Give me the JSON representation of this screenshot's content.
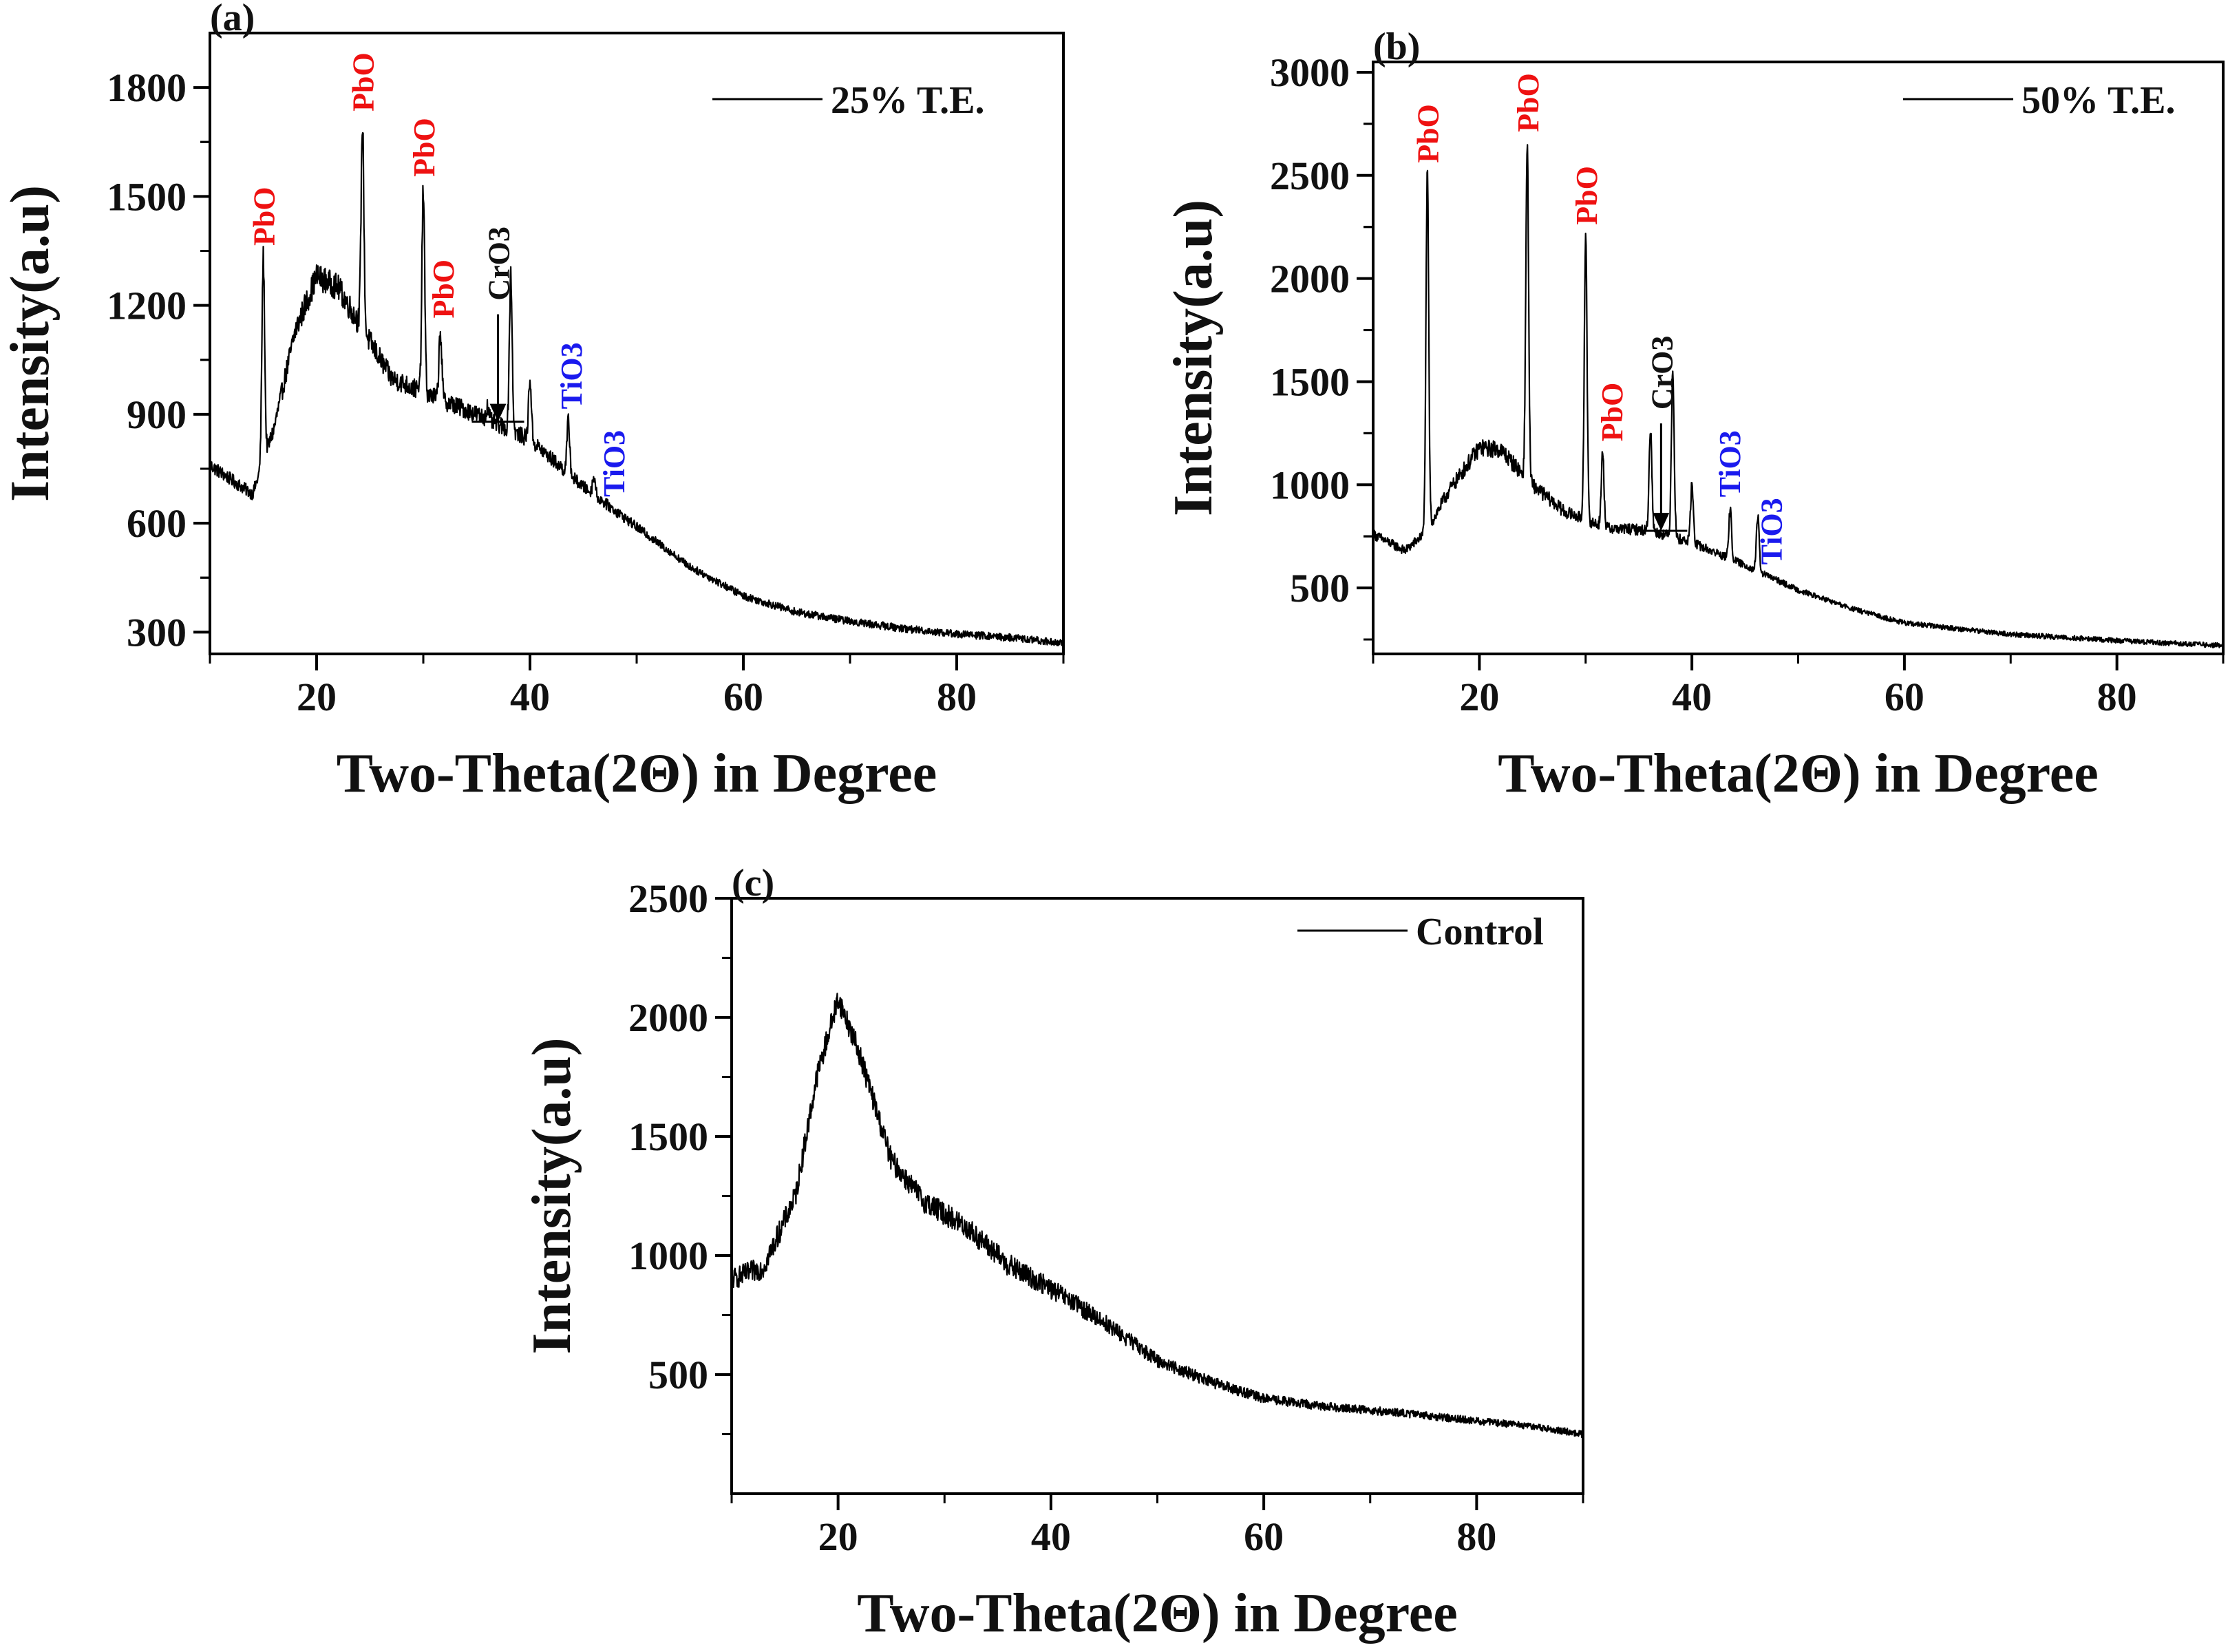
{
  "chart_data": [
    {
      "type": "line",
      "panel": "(a)",
      "legend": "25% T.E.",
      "legend_placement": "top-right",
      "xlabel": "Two-Theta(2Θ) in Degree",
      "ylabel": "Intensity(a.u)",
      "xlim": [
        10,
        90
      ],
      "ylim": [
        240,
        1950
      ],
      "xticks": [
        20,
        40,
        60,
        80
      ],
      "yticks": [
        300,
        600,
        900,
        1200,
        1500,
        1800
      ],
      "series": [
        {
          "name": "25% T.E.",
          "background": [
            [
              10,
              760
            ],
            [
              14,
              680
            ],
            [
              16,
              860
            ],
            [
              18,
              1130
            ],
            [
              20,
              1280
            ],
            [
              22,
              1250
            ],
            [
              24,
              1150
            ],
            [
              27,
              1000
            ],
            [
              30,
              960
            ],
            [
              35,
              900
            ],
            [
              40,
              830
            ],
            [
              45,
              700
            ],
            [
              50,
              590
            ],
            [
              55,
              480
            ],
            [
              60,
              400
            ],
            [
              65,
              355
            ],
            [
              70,
              330
            ],
            [
              75,
              310
            ],
            [
              80,
              295
            ],
            [
              85,
              285
            ],
            [
              90,
              270
            ]
          ],
          "peaks": [
            [
              15.0,
              1330
            ],
            [
              24.3,
              1700
            ],
            [
              30.0,
              1520
            ],
            [
              31.6,
              1130
            ],
            [
              36.0,
              920
            ],
            [
              38.2,
              1290
            ],
            [
              40.0,
              1000
            ],
            [
              43.6,
              880
            ],
            [
              46.0,
              730
            ]
          ],
          "noise": 30
        }
      ],
      "annotations": [
        {
          "text": "PbO",
          "x": 15.0,
          "color": "#ee1111"
        },
        {
          "text": "PbO",
          "x": 24.3,
          "color": "#ee1111"
        },
        {
          "text": "PbO",
          "x": 30.0,
          "color": "#ee1111"
        },
        {
          "text": "PbO",
          "x": 31.8,
          "color": "#ee1111"
        },
        {
          "text": "CrO3",
          "x": 37.0,
          "color": "#111111"
        },
        {
          "text": "TiO3",
          "x": 43.8,
          "color": "#1a1aee"
        },
        {
          "text": "TiO3",
          "x": 47.8,
          "color": "#1a1aee"
        }
      ]
    },
    {
      "type": "line",
      "panel": "(b)",
      "legend": "50% T.E.",
      "legend_placement": "top-right",
      "xlabel": "Two-Theta(2Θ) in Degree",
      "ylabel": "Intensity(a.u)",
      "xlim": [
        10,
        90
      ],
      "ylim": [
        180,
        3050
      ],
      "xticks": [
        20,
        40,
        60,
        80
      ],
      "yticks": [
        500,
        1000,
        1500,
        2000,
        2500,
        3000
      ],
      "series": [
        {
          "name": "50% T.E.",
          "background": [
            [
              10,
              760
            ],
            [
              13,
              680
            ],
            [
              15,
              770
            ],
            [
              17,
              960
            ],
            [
              20,
              1180
            ],
            [
              22,
              1170
            ],
            [
              25,
              1000
            ],
            [
              28,
              870
            ],
            [
              32,
              790
            ],
            [
              36,
              780
            ],
            [
              40,
              720
            ],
            [
              45,
              610
            ],
            [
              50,
              490
            ],
            [
              55,
              400
            ],
            [
              60,
              330
            ],
            [
              70,
              275
            ],
            [
              80,
              245
            ],
            [
              90,
              220
            ]
          ],
          "peaks": [
            [
              15.1,
              2500
            ],
            [
              24.5,
              2650
            ],
            [
              30.0,
              2200
            ],
            [
              31.6,
              1150
            ],
            [
              36.1,
              1280
            ],
            [
              38.2,
              1560
            ],
            [
              40.0,
              1000
            ],
            [
              43.6,
              880
            ],
            [
              46.2,
              840
            ]
          ],
          "noise": 35
        }
      ],
      "annotations": [
        {
          "text": "PbO",
          "x": 15.1,
          "color": "#ee1111"
        },
        {
          "text": "PbO",
          "x": 24.5,
          "color": "#ee1111"
        },
        {
          "text": "PbO",
          "x": 30.0,
          "color": "#ee1111"
        },
        {
          "text": "PbO",
          "x": 32.4,
          "color": "#ee1111"
        },
        {
          "text": "CrO3",
          "x": 37.1,
          "color": "#111111"
        },
        {
          "text": "TiO3",
          "x": 43.5,
          "color": "#1a1aee"
        },
        {
          "text": "TiO3",
          "x": 47.4,
          "color": "#1a1aee"
        }
      ]
    },
    {
      "type": "line",
      "panel": "(c)",
      "legend": "Control",
      "legend_placement": "top-right",
      "xlabel": "Two-Theta(2Θ) in Degree",
      "ylabel": "Intensity(a.u)",
      "xlim": [
        10,
        90
      ],
      "ylim": [
        0,
        2500
      ],
      "xticks": [
        20,
        40,
        60,
        80
      ],
      "yticks": [
        500,
        1000,
        1500,
        2000,
        2500
      ],
      "series": [
        {
          "name": "Control",
          "background": [
            [
              10,
              900
            ],
            [
              13,
              950
            ],
            [
              16,
              1250
            ],
            [
              18,
              1750
            ],
            [
              20,
              2080
            ],
            [
              22,
              1850
            ],
            [
              25,
              1400
            ],
            [
              28,
              1230
            ],
            [
              32,
              1120
            ],
            [
              36,
              960
            ],
            [
              40,
              860
            ],
            [
              45,
              720
            ],
            [
              50,
              560
            ],
            [
              55,
              470
            ],
            [
              60,
              400
            ],
            [
              65,
              370
            ],
            [
              70,
              350
            ],
            [
              75,
              330
            ],
            [
              80,
              305
            ],
            [
              85,
              285
            ],
            [
              90,
              250
            ]
          ],
          "peaks": [],
          "noise": 40
        }
      ],
      "annotations": []
    }
  ]
}
